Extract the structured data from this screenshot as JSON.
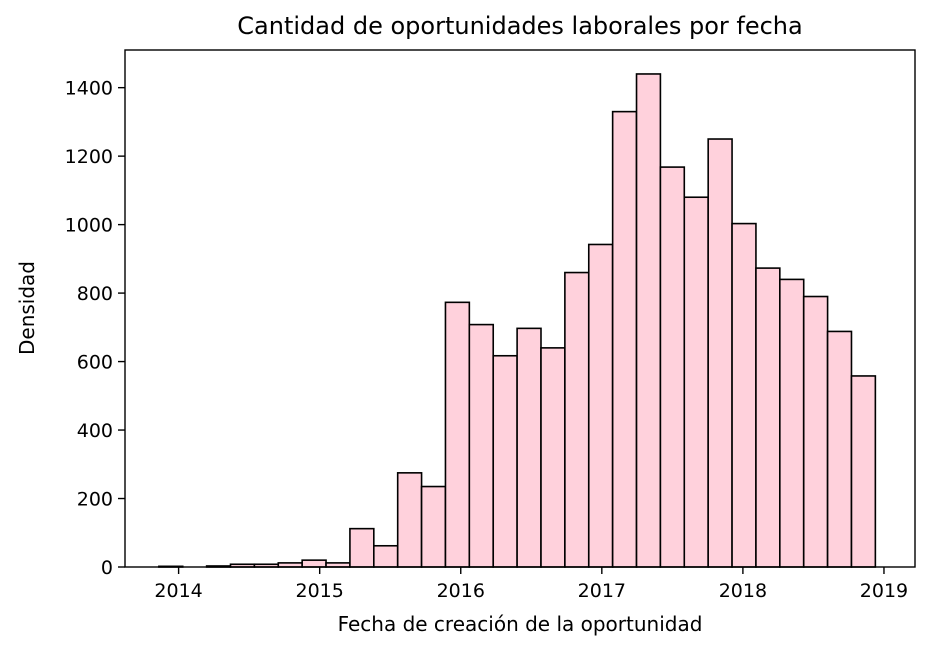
{
  "chart_data": {
    "type": "bar",
    "title": "Cantidad de oportunidades laborales por fecha",
    "xlabel": "Fecha de creación de la oportunidad",
    "ylabel": "Densidad",
    "xlim": [
      2013.62,
      2019.22
    ],
    "ylim": [
      0,
      1510
    ],
    "xticks": [
      {
        "value": 2014,
        "label": "2014"
      },
      {
        "value": 2015,
        "label": "2015"
      },
      {
        "value": 2016,
        "label": "2016"
      },
      {
        "value": 2017,
        "label": "2017"
      },
      {
        "value": 2018,
        "label": "2018"
      },
      {
        "value": 2019,
        "label": "2019"
      }
    ],
    "yticks": [
      {
        "value": 0,
        "label": "0"
      },
      {
        "value": 200,
        "label": "200"
      },
      {
        "value": 400,
        "label": "400"
      },
      {
        "value": 600,
        "label": "600"
      },
      {
        "value": 800,
        "label": "800"
      },
      {
        "value": 1000,
        "label": "1000"
      },
      {
        "value": 1200,
        "label": "1200"
      },
      {
        "value": 1400,
        "label": "1400"
      }
    ],
    "bin_start": 2013.86,
    "bin_width": 0.1693,
    "values": [
      2,
      0,
      3,
      8,
      8,
      12,
      20,
      12,
      112,
      62,
      275,
      235,
      773,
      708,
      617,
      697,
      640,
      860,
      942,
      1330,
      1440,
      1168,
      1080,
      1250,
      1003,
      873,
      840,
      790,
      688,
      558
    ],
    "bar_color": "#ffd1dc",
    "edge_color": "#000000",
    "grid": false
  }
}
